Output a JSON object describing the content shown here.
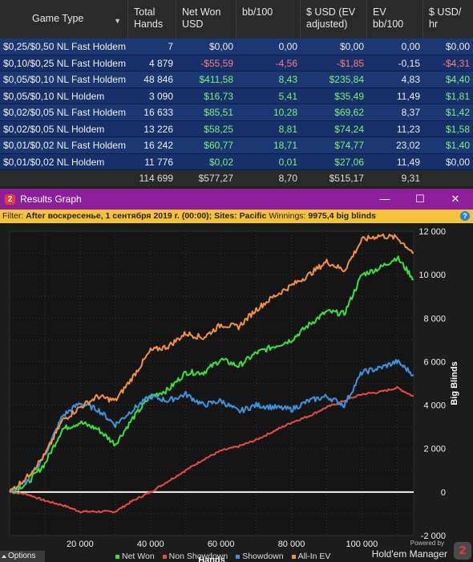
{
  "table": {
    "headers": [
      {
        "line1": "Game Type",
        "line2": ""
      },
      {
        "line1": "Total",
        "line2": "Hands"
      },
      {
        "line1": "Net Won",
        "line2": "USD"
      },
      {
        "line1": "bb/100",
        "line2": ""
      },
      {
        "line1": "$ USD (EV",
        "line2": "adjusted)"
      },
      {
        "line1": "EV",
        "line2": "bb/100"
      },
      {
        "line1": "$ USD/",
        "line2": "hr"
      }
    ],
    "rows": [
      {
        "game": "$0,25/$0,50 NL Fast Holdem",
        "hands": "7",
        "net": "$0,00",
        "bb100": "0,00",
        "usd_ev": "$0,00",
        "ev_bb100": "0,00",
        "usd_hr": "$0,00",
        "sign": [
          "neu",
          "neu",
          "neu",
          "neu",
          "neu"
        ]
      },
      {
        "game": "$0,10/$0,25 NL Fast Holdem",
        "hands": "4 879",
        "net": "-$55,59",
        "bb100": "-4,56",
        "usd_ev": "-$1,85",
        "ev_bb100": "-0,15",
        "usd_hr": "-$4,31",
        "sign": [
          "neg",
          "neg",
          "neg",
          "neu",
          "neg"
        ]
      },
      {
        "game": "$0,05/$0,10 NL Fast Holdem",
        "hands": "48 846",
        "net": "$411,58",
        "bb100": "8,43",
        "usd_ev": "$235,84",
        "ev_bb100": "4,83",
        "usd_hr": "$4,40",
        "sign": [
          "pos",
          "pos",
          "pos",
          "neu",
          "pos"
        ]
      },
      {
        "game": "$0,05/$0,10 NL Holdem",
        "hands": "3 090",
        "net": "$16,73",
        "bb100": "5,41",
        "usd_ev": "$35,49",
        "ev_bb100": "11,49",
        "usd_hr": "$1,81",
        "sign": [
          "pos",
          "pos",
          "pos",
          "neu",
          "pos"
        ]
      },
      {
        "game": "$0,02/$0,05 NL Fast Holdem",
        "hands": "16 633",
        "net": "$85,51",
        "bb100": "10,28",
        "usd_ev": "$69,62",
        "ev_bb100": "8,37",
        "usd_hr": "$1,42",
        "sign": [
          "pos",
          "pos",
          "pos",
          "neu",
          "pos"
        ]
      },
      {
        "game": "$0,02/$0,05 NL Holdem",
        "hands": "13 226",
        "net": "$58,25",
        "bb100": "8,81",
        "usd_ev": "$74,24",
        "ev_bb100": "11,23",
        "usd_hr": "$1,58",
        "sign": [
          "pos",
          "pos",
          "pos",
          "neu",
          "pos"
        ]
      },
      {
        "game": "$0,01/$0,02 NL Fast Holdem",
        "hands": "16 242",
        "net": "$60,77",
        "bb100": "18,71",
        "usd_ev": "$74,77",
        "ev_bb100": "23,02",
        "usd_hr": "$1,40",
        "sign": [
          "pos",
          "pos",
          "pos",
          "neu",
          "pos"
        ]
      },
      {
        "game": "$0,01/$0,02 NL Holdem",
        "hands": "11 776",
        "net": "$0,02",
        "bb100": "0,01",
        "usd_ev": "$27,06",
        "ev_bb100": "11,49",
        "usd_hr": "$0,00",
        "sign": [
          "pos",
          "pos",
          "pos",
          "neu",
          "neu"
        ]
      }
    ],
    "totals": {
      "game": "",
      "hands": "114 699",
      "net": "$577,27",
      "bb100": "8,70",
      "usd_ev": "$515,17",
      "ev_bb100": "9,31",
      "usd_hr": ""
    }
  },
  "window": {
    "badge": "2",
    "title": "Results Graph",
    "buttons": [
      "—",
      "☐",
      "✕"
    ]
  },
  "filter": {
    "label": "Filter:",
    "text": "After воскресенье, 1 сентября 2019 г. (00:00); Sites: Pacific",
    "winnings_label": "Winnings:",
    "winnings_value": "9975,4 big blinds",
    "help": "?"
  },
  "chart_data": {
    "type": "line",
    "xlabel": "Hands",
    "ylabel": "Big Blinds",
    "xlim": [
      0,
      114699
    ],
    "ylim": [
      -2000,
      12000
    ],
    "x_ticks": [
      20000,
      40000,
      60000,
      80000,
      100000
    ],
    "x_tick_labels": [
      "20 000",
      "40 000",
      "60 000",
      "80 000",
      "100 000"
    ],
    "y_ticks": [
      -2000,
      0,
      2000,
      4000,
      6000,
      8000,
      10000,
      12000
    ],
    "y_tick_labels": [
      "-2 000",
      "0",
      "2 000",
      "4 000",
      "6 000",
      "8 000",
      "10 000",
      "12 000"
    ],
    "grid": true,
    "legend_position": "bottom",
    "x": [
      0,
      5000,
      10000,
      15000,
      20000,
      25000,
      30000,
      35000,
      40000,
      45000,
      50000,
      55000,
      60000,
      65000,
      70000,
      75000,
      80000,
      85000,
      90000,
      95000,
      100000,
      105000,
      110000,
      114699
    ],
    "series": [
      {
        "name": "Net Won",
        "color": "#39e33a",
        "values": [
          0,
          400,
          1300,
          2900,
          3200,
          2900,
          2200,
          3400,
          4400,
          4700,
          5500,
          5500,
          6100,
          5800,
          6400,
          6700,
          7000,
          7700,
          8300,
          8200,
          10000,
          10300,
          10800,
          9800
        ]
      },
      {
        "name": "Non Showdown",
        "color": "#e84a45",
        "values": [
          0,
          -100,
          -400,
          -600,
          -900,
          -900,
          -900,
          -400,
          0,
          500,
          1000,
          1500,
          1900,
          2100,
          2400,
          2800,
          3200,
          3500,
          3900,
          4200,
          4500,
          4600,
          4800,
          4400
        ]
      },
      {
        "name": "Showdown",
        "color": "#3a95e0",
        "values": [
          0,
          500,
          1700,
          3500,
          4100,
          3800,
          3100,
          3800,
          4400,
          4200,
          4500,
          4000,
          4200,
          3700,
          4000,
          3900,
          3800,
          4200,
          4400,
          4000,
          5500,
          5700,
          6000,
          5400
        ]
      },
      {
        "name": "All-In EV",
        "color": "#f5923a",
        "values": [
          0,
          700,
          1700,
          3300,
          3900,
          4400,
          4200,
          5300,
          6500,
          6700,
          7300,
          7100,
          7700,
          7600,
          8400,
          9000,
          9500,
          10000,
          10600,
          10200,
          11600,
          11800,
          11700,
          11000
        ]
      }
    ]
  },
  "bottom": {
    "options": "Options",
    "powered": "Powered by",
    "brand": "Hold'em Manager",
    "logo": "2"
  }
}
